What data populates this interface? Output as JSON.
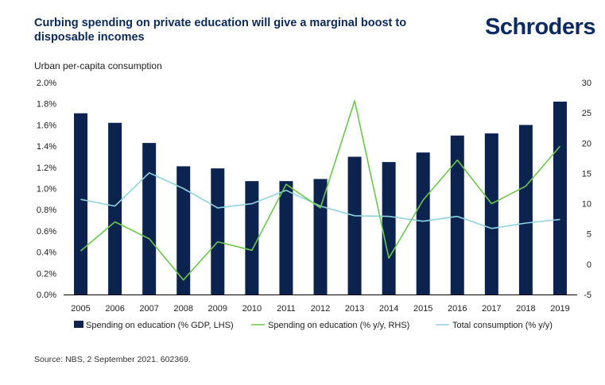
{
  "header": {
    "title": "Curbing spending on private education will give a marginal boost to disposable incomes",
    "brand": "Schroders",
    "left_axis_label": "Urban per-capita consumption"
  },
  "footer": {
    "source": "Source: NBS, 2 September 2021. 602369."
  },
  "colors": {
    "bar": "#0c2350",
    "line_edu": "#6cc84a",
    "line_total": "#8fd3de",
    "title": "#0b2a5b"
  },
  "chart_data": {
    "type": "bar",
    "categories": [
      "2005",
      "2006",
      "2007",
      "2008",
      "2009",
      "2010",
      "2011",
      "2012",
      "2013",
      "2014",
      "2015",
      "2016",
      "2017",
      "2018",
      "2019"
    ],
    "y_left": {
      "min": 0,
      "max": 2.0,
      "ticks": [
        "0.0%",
        "0.2%",
        "0.4%",
        "0.6%",
        "0.8%",
        "1.0%",
        "1.2%",
        "1.4%",
        "1.6%",
        "1.8%",
        "2.0%"
      ]
    },
    "y_right": {
      "min": -5,
      "max": 30,
      "ticks": [
        "-5",
        "0",
        "5",
        "10",
        "15",
        "20",
        "25",
        "30"
      ]
    },
    "grid": false,
    "legend_position": "bottom",
    "series": [
      {
        "name": "Spending on education (% GDP, LHS)",
        "type": "bar",
        "axis": "left",
        "values": [
          1.71,
          1.62,
          1.43,
          1.21,
          1.19,
          1.07,
          1.07,
          1.09,
          1.3,
          1.25,
          1.34,
          1.5,
          1.52,
          1.6,
          1.82
        ]
      },
      {
        "name": "Spending on education (% y/y, RHS)",
        "type": "line",
        "axis": "right",
        "values": [
          2.2,
          7.0,
          4.2,
          -2.6,
          3.7,
          2.3,
          13.2,
          9.3,
          27.0,
          1.0,
          10.6,
          17.2,
          10.0,
          12.9,
          19.5
        ]
      },
      {
        "name": "Total consumption (% y/y)",
        "type": "line",
        "axis": "right",
        "values": [
          10.7,
          9.6,
          15.1,
          12.5,
          9.3,
          10.0,
          12.2,
          9.6,
          8.0,
          7.9,
          7.1,
          7.9,
          5.9,
          6.8,
          7.4
        ]
      }
    ]
  }
}
